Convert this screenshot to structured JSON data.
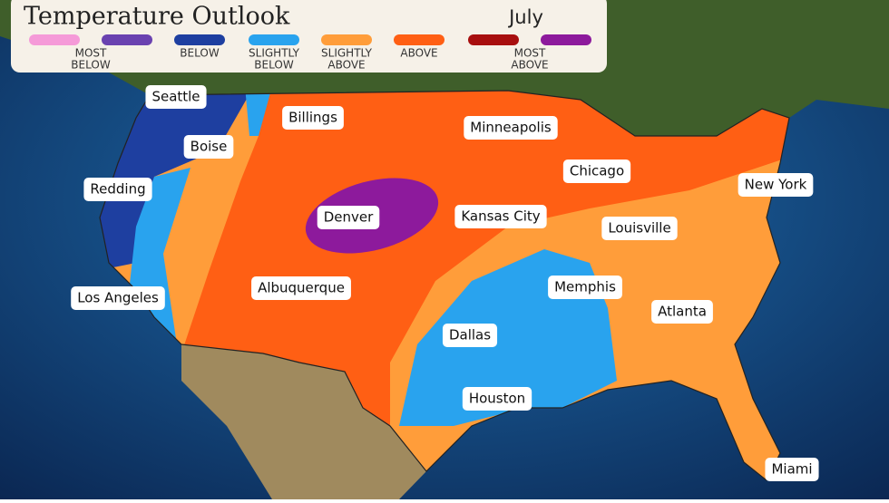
{
  "header": {
    "title": "Temperature Outlook",
    "period": "July"
  },
  "legend": {
    "items": [
      {
        "lines": [
          "MOST",
          "BELOW"
        ],
        "color": "#f59ad8"
      },
      {
        "lines": [
          "BELOW"
        ],
        "color": "#1e3fa0"
      },
      {
        "lines": [
          "SLIGHTLY",
          "BELOW"
        ],
        "color": "#29a3ee"
      },
      {
        "lines": [
          "SLIGHTLY",
          "ABOVE"
        ],
        "color": "#ff9d3a"
      },
      {
        "lines": [
          "ABOVE"
        ],
        "color": "#ff5f14"
      },
      {
        "lines": [
          "MOST",
          "ABOVE"
        ],
        "color": "#a80f0f"
      }
    ],
    "extra_swatches": [
      {
        "color": "#6a42b0"
      },
      {
        "color": "#8d1a9c"
      }
    ]
  },
  "cities": [
    "Seattle",
    "Billings",
    "Minneapolis",
    "Boise",
    "Chicago",
    "Redding",
    "New York",
    "Denver",
    "Kansas City",
    "Louisville",
    "Albuquerque",
    "Memphis",
    "Los Angeles",
    "Atlanta",
    "Dallas",
    "Houston",
    "Miami"
  ]
}
